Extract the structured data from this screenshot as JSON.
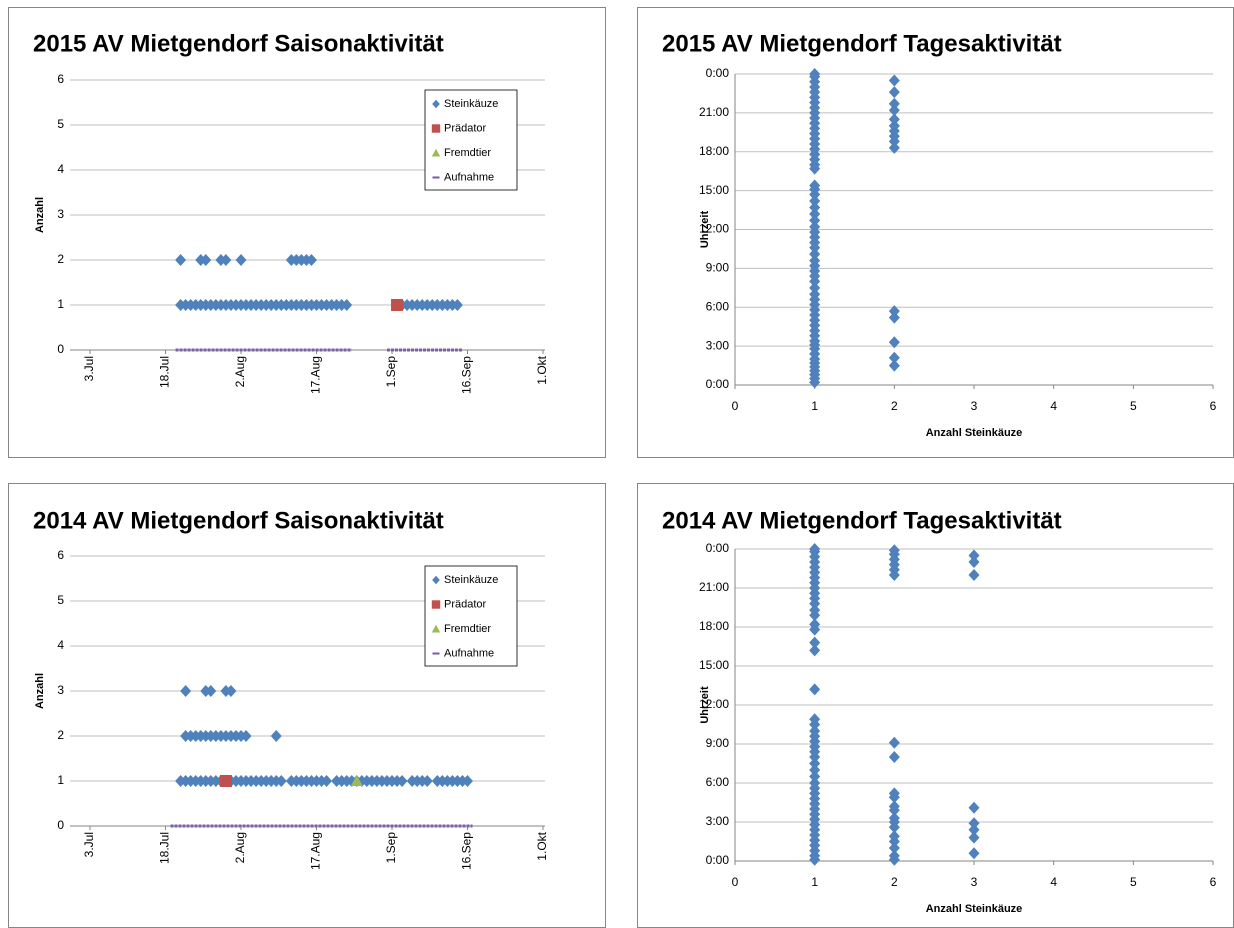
{
  "chart_data": [
    {
      "type": "scatter",
      "title": "2015 AV Mietgendorf  Saisonaktivität",
      "ylabel": "Anzahl",
      "xlim": [
        "3.Jul",
        "1.Okt"
      ],
      "xticks": [
        "3.Jul",
        "18.Jul",
        "2.Aug",
        "17.Aug",
        "1.Sep",
        "16.Sep",
        "1.Okt"
      ],
      "ylim": [
        0,
        6
      ],
      "yticks": [
        0,
        1,
        2,
        3,
        4,
        5,
        6
      ],
      "grid": true,
      "legend": "upper right",
      "series": [
        {
          "name": "Steinkäuze",
          "color": "#4f81bd",
          "marker": "diamond",
          "x": [
            "21.Jul",
            "22.Jul",
            "23.Jul",
            "24.Jul",
            "25.Jul",
            "26.Jul",
            "27.Jul",
            "28.Jul",
            "29.Jul",
            "30.Jul",
            "31.Jul",
            "1.Aug",
            "2.Aug",
            "3.Aug",
            "4.Aug",
            "5.Aug",
            "6.Aug",
            "7.Aug",
            "8.Aug",
            "9.Aug",
            "10.Aug",
            "11.Aug",
            "12.Aug",
            "13.Aug",
            "14.Aug",
            "15.Aug",
            "16.Aug",
            "17.Aug",
            "18.Aug",
            "19.Aug",
            "20.Aug",
            "21.Aug",
            "22.Aug",
            "23.Aug",
            "3.Sep",
            "4.Sep",
            "5.Sep",
            "6.Sep",
            "7.Sep",
            "8.Sep",
            "9.Sep",
            "10.Sep",
            "11.Sep",
            "12.Sep",
            "13.Sep",
            "14.Sep",
            "21.Jul",
            "25.Jul",
            "26.Jul",
            "29.Jul",
            "30.Jul",
            "2.Aug",
            "12.Aug",
            "13.Aug",
            "14.Aug",
            "15.Aug",
            "16.Aug"
          ],
          "values": [
            1,
            1,
            1,
            1,
            1,
            1,
            1,
            1,
            1,
            1,
            1,
            1,
            1,
            1,
            1,
            1,
            1,
            1,
            1,
            1,
            1,
            1,
            1,
            1,
            1,
            1,
            1,
            1,
            1,
            1,
            1,
            1,
            1,
            1,
            1,
            1,
            1,
            1,
            1,
            1,
            1,
            1,
            1,
            1,
            1,
            1,
            2,
            2,
            2,
            2,
            2,
            2,
            2,
            2,
            2,
            2,
            2
          ]
        },
        {
          "name": "Prädator",
          "color": "#c0504d",
          "marker": "square",
          "x": [
            "2.Sep"
          ],
          "values": [
            1
          ]
        },
        {
          "name": "Fremdtier",
          "color": "#9bbb59",
          "marker": "triangle",
          "x": [],
          "values": []
        },
        {
          "name": "Aufnahme",
          "color": "#7d5fa8",
          "marker": "line",
          "x": [
            "20.Jul",
            "24.Aug",
            "27.Aug",
            "31.Aug",
            "15.Sep"
          ],
          "values": [
            0,
            0,
            null,
            0,
            0
          ]
        }
      ]
    },
    {
      "type": "scatter",
      "title": "2015 AV Mietgendorf  Tagesaktivität",
      "xlabel": "Anzahl Steinkäuze",
      "ylabel": "Uhrzeit",
      "xlim": [
        0,
        6
      ],
      "xticks": [
        0,
        1,
        2,
        3,
        4,
        5,
        6
      ],
      "ylim": [
        0,
        24
      ],
      "yticks": [
        {
          "value": 0,
          "label": "0:00"
        },
        {
          "value": 3,
          "label": "3:00"
        },
        {
          "value": 6,
          "label": "6:00"
        },
        {
          "value": 9,
          "label": "9:00"
        },
        {
          "value": 12,
          "label": "12:00"
        },
        {
          "value": 15,
          "label": "15:00"
        },
        {
          "value": 18,
          "label": "18:00"
        },
        {
          "value": 21,
          "label": "21:00"
        },
        {
          "value": 24,
          "label": "0:00"
        }
      ],
      "grid": true,
      "color": "#4f81bd",
      "marker": "diamond",
      "x": [
        1,
        1,
        1,
        1,
        1,
        1,
        1,
        1,
        1,
        1,
        1,
        1,
        1,
        1,
        1,
        1,
        1,
        1,
        1,
        1,
        1,
        1,
        1,
        1,
        1,
        1,
        1,
        1,
        1,
        1,
        1,
        1,
        1,
        1,
        1,
        1,
        1,
        1,
        1,
        1,
        1,
        1,
        1,
        1,
        1,
        1,
        1,
        1,
        1,
        1,
        1,
        1,
        1,
        1,
        1,
        1,
        1,
        1,
        1,
        2,
        2,
        2,
        2,
        2,
        2,
        2,
        2,
        2,
        2,
        2,
        2,
        2,
        2,
        2
      ],
      "values": [
        0.2,
        0.5,
        0.8,
        1.1,
        1.4,
        1.7,
        2.0,
        2.4,
        2.8,
        3.1,
        3.4,
        3.8,
        4.2,
        4.6,
        5.0,
        5.4,
        5.8,
        6.2,
        6.6,
        7.0,
        7.5,
        8.0,
        8.4,
        8.8,
        9.2,
        9.6,
        10.1,
        10.6,
        11.0,
        11.4,
        11.8,
        12.2,
        12.7,
        13.2,
        13.7,
        14.2,
        14.7,
        15.1,
        15.4,
        16.7,
        17.0,
        17.4,
        17.8,
        18.2,
        18.6,
        19.0,
        19.4,
        19.8,
        20.2,
        20.6,
        21.0,
        21.4,
        21.8,
        22.2,
        22.6,
        23.0,
        23.4,
        23.8,
        24.0,
        1.5,
        2.1,
        3.3,
        5.2,
        5.7,
        18.3,
        18.8,
        19.2,
        19.6,
        20.0,
        20.5,
        21.2,
        21.7,
        22.6,
        23.5
      ]
    },
    {
      "type": "scatter",
      "title": "2014 AV Mietgendorf  Saisonaktivität",
      "ylabel": "Anzahl",
      "xlim": [
        "3.Jul",
        "1.Okt"
      ],
      "xticks": [
        "3.Jul",
        "18.Jul",
        "2.Aug",
        "17.Aug",
        "1.Sep",
        "16.Sep",
        "1.Okt"
      ],
      "ylim": [
        0,
        6
      ],
      "yticks": [
        0,
        1,
        2,
        3,
        4,
        5,
        6
      ],
      "grid": true,
      "legend": "upper right",
      "series": [
        {
          "name": "Steinkäuze",
          "color": "#4f81bd",
          "marker": "diamond",
          "x": [
            "21.Jul",
            "22.Jul",
            "23.Jul",
            "24.Jul",
            "25.Jul",
            "26.Jul",
            "27.Jul",
            "28.Jul",
            "29.Jul",
            "30.Jul",
            "31.Jul",
            "1.Aug",
            "2.Aug",
            "3.Aug",
            "4.Aug",
            "5.Aug",
            "6.Aug",
            "7.Aug",
            "8.Aug",
            "9.Aug",
            "10.Aug",
            "12.Aug",
            "13.Aug",
            "14.Aug",
            "15.Aug",
            "16.Aug",
            "17.Aug",
            "18.Aug",
            "19.Aug",
            "21.Aug",
            "22.Aug",
            "23.Aug",
            "24.Aug",
            "25.Aug",
            "26.Aug",
            "27.Aug",
            "28.Aug",
            "29.Aug",
            "30.Aug",
            "31.Aug",
            "1.Sep",
            "2.Sep",
            "3.Sep",
            "5.Sep",
            "6.Sep",
            "7.Sep",
            "8.Sep",
            "10.Sep",
            "11.Sep",
            "12.Sep",
            "13.Sep",
            "14.Sep",
            "15.Sep",
            "16.Sep",
            "22.Jul",
            "23.Jul",
            "24.Jul",
            "25.Jul",
            "26.Jul",
            "27.Jul",
            "28.Jul",
            "29.Jul",
            "30.Jul",
            "31.Jul",
            "1.Aug",
            "2.Aug",
            "3.Aug",
            "9.Aug",
            "22.Jul",
            "26.Jul",
            "27.Jul",
            "30.Jul",
            "31.Jul"
          ],
          "values": [
            1,
            1,
            1,
            1,
            1,
            1,
            1,
            1,
            1,
            1,
            1,
            1,
            1,
            1,
            1,
            1,
            1,
            1,
            1,
            1,
            1,
            1,
            1,
            1,
            1,
            1,
            1,
            1,
            1,
            1,
            1,
            1,
            1,
            1,
            1,
            1,
            1,
            1,
            1,
            1,
            1,
            1,
            1,
            1,
            1,
            1,
            1,
            1,
            1,
            1,
            1,
            1,
            1,
            1,
            2,
            2,
            2,
            2,
            2,
            2,
            2,
            2,
            2,
            2,
            2,
            2,
            2,
            2,
            3,
            3,
            3,
            3,
            3
          ]
        },
        {
          "name": "Prädator",
          "color": "#c0504d",
          "marker": "square",
          "x": [
            "30.Jul"
          ],
          "values": [
            1
          ]
        },
        {
          "name": "Fremdtier",
          "color": "#9bbb59",
          "marker": "triangle",
          "x": [
            "25.Aug"
          ],
          "values": [
            1
          ]
        },
        {
          "name": "Aufnahme",
          "color": "#7d5fa8",
          "marker": "line",
          "x": [
            "19.Jul",
            "17.Sep"
          ],
          "values": [
            0,
            0
          ]
        }
      ]
    },
    {
      "type": "scatter",
      "title": "2014 AV Mietgendorf  Tagesaktivität",
      "xlabel": "Anzahl Steinkäuze",
      "ylabel": "Uhrzeit",
      "xlim": [
        0,
        6
      ],
      "xticks": [
        0,
        1,
        2,
        3,
        4,
        5,
        6
      ],
      "ylim": [
        0,
        24
      ],
      "yticks": [
        {
          "value": 0,
          "label": "0:00"
        },
        {
          "value": 3,
          "label": "3:00"
        },
        {
          "value": 6,
          "label": "6:00"
        },
        {
          "value": 9,
          "label": "9:00"
        },
        {
          "value": 12,
          "label": "12:00"
        },
        {
          "value": 15,
          "label": "15:00"
        },
        {
          "value": 18,
          "label": "18:00"
        },
        {
          "value": 21,
          "label": "21:00"
        },
        {
          "value": 24,
          "label": "0:00"
        }
      ],
      "grid": true,
      "color": "#4f81bd",
      "marker": "diamond",
      "x": [
        1,
        1,
        1,
        1,
        1,
        1,
        1,
        1,
        1,
        1,
        1,
        1,
        1,
        1,
        1,
        1,
        1,
        1,
        1,
        1,
        1,
        1,
        1,
        1,
        1,
        1,
        1,
        1,
        1,
        1,
        1,
        1,
        1,
        1,
        1,
        1,
        1,
        1,
        1,
        1,
        1,
        1,
        1,
        1,
        1,
        1,
        2,
        2,
        2,
        2,
        2,
        2,
        2,
        2,
        2,
        2,
        2,
        2,
        2,
        2,
        2,
        2,
        2,
        2,
        2,
        2,
        3,
        3,
        3,
        3,
        3,
        3,
        3,
        3
      ],
      "values": [
        0.1,
        0.4,
        0.8,
        1.2,
        1.6,
        2.0,
        2.4,
        2.8,
        3.2,
        3.6,
        4.0,
        4.4,
        4.8,
        5.2,
        5.6,
        6.0,
        6.5,
        7.0,
        7.5,
        8.0,
        8.4,
        8.8,
        9.2,
        9.6,
        10.0,
        10.5,
        10.9,
        13.2,
        16.2,
        16.8,
        17.8,
        18.2,
        18.9,
        19.3,
        19.8,
        20.2,
        20.6,
        21.0,
        21.4,
        21.8,
        22.2,
        22.6,
        23.0,
        23.4,
        23.8,
        24.0,
        0.1,
        0.4,
        1.0,
        1.5,
        1.9,
        2.6,
        3.0,
        3.3,
        3.9,
        4.2,
        4.9,
        5.2,
        8.0,
        9.1,
        22.0,
        22.4,
        22.8,
        23.2,
        23.6,
        23.9,
        0.6,
        1.8,
        2.4,
        2.9,
        4.1,
        22.0,
        23.0,
        23.5
      ]
    }
  ]
}
